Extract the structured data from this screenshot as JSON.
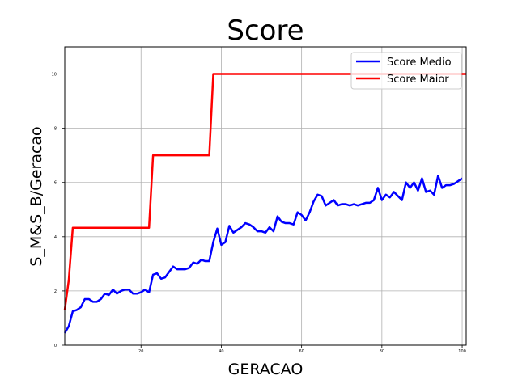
{
  "chart_data": {
    "type": "line",
    "title": "Score",
    "xlabel": "GERACAO",
    "ylabel": "S_M&S_B/Geracao",
    "xlim": [
      1,
      101
    ],
    "ylim": [
      0,
      11
    ],
    "x_ticks": [
      20,
      40,
      60,
      80,
      100
    ],
    "y_ticks": [
      0,
      2,
      4,
      6,
      8,
      10
    ],
    "grid": true,
    "legend_position": "top-right",
    "series": [
      {
        "name": "Score Medio",
        "color": "#0000ff",
        "x": [
          1,
          2,
          3,
          4,
          5,
          6,
          7,
          8,
          9,
          10,
          11,
          12,
          13,
          14,
          15,
          16,
          17,
          18,
          19,
          20,
          21,
          22,
          23,
          24,
          25,
          26,
          27,
          28,
          29,
          30,
          31,
          32,
          33,
          34,
          35,
          36,
          37,
          38,
          39,
          40,
          41,
          42,
          43,
          44,
          45,
          46,
          47,
          48,
          49,
          50,
          51,
          52,
          53,
          54,
          55,
          56,
          57,
          58,
          59,
          60,
          61,
          62,
          63,
          64,
          65,
          66,
          67,
          68,
          69,
          70,
          71,
          72,
          73,
          74,
          75,
          76,
          77,
          78,
          79,
          80,
          81,
          82,
          83,
          84,
          85,
          86,
          87,
          88,
          89,
          90,
          91,
          92,
          93,
          94,
          95,
          96,
          97,
          98,
          99,
          100
        ],
        "values": [
          0.45,
          0.7,
          1.25,
          1.3,
          1.4,
          1.7,
          1.7,
          1.6,
          1.6,
          1.7,
          1.9,
          1.85,
          2.05,
          1.9,
          2.0,
          2.05,
          2.05,
          1.9,
          1.9,
          1.95,
          2.05,
          1.95,
          2.6,
          2.65,
          2.45,
          2.5,
          2.7,
          2.9,
          2.8,
          2.8,
          2.8,
          2.85,
          3.05,
          3.0,
          3.15,
          3.1,
          3.1,
          3.8,
          4.3,
          3.7,
          3.8,
          4.4,
          4.15,
          4.25,
          4.35,
          4.5,
          4.45,
          4.35,
          4.2,
          4.2,
          4.15,
          4.35,
          4.2,
          4.75,
          4.55,
          4.5,
          4.5,
          4.45,
          4.9,
          4.8,
          4.6,
          4.9,
          5.3,
          5.55,
          5.5,
          5.15,
          5.25,
          5.35,
          5.15,
          5.2,
          5.2,
          5.15,
          5.2,
          5.15,
          5.2,
          5.25,
          5.25,
          5.35,
          5.8,
          5.35,
          5.55,
          5.45,
          5.65,
          5.5,
          5.35,
          6.0,
          5.8,
          6.0,
          5.7,
          6.15,
          5.65,
          5.7,
          5.55,
          6.25,
          5.8,
          5.9,
          5.9,
          5.95,
          6.05,
          6.15
        ]
      },
      {
        "name": "Score Maior",
        "color": "#ff0000",
        "x": [
          1,
          2,
          3,
          22,
          23,
          37,
          38,
          101
        ],
        "values": [
          1.3,
          2.4,
          4.33,
          4.33,
          7.0,
          7.0,
          10.0,
          10.0
        ]
      }
    ]
  }
}
